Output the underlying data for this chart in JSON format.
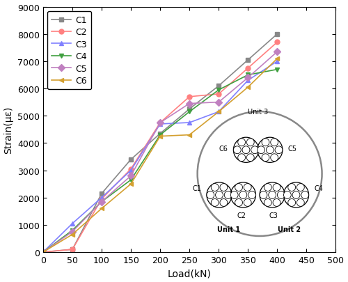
{
  "load": [
    0,
    50,
    100,
    150,
    200,
    250,
    300,
    350,
    400
  ],
  "C1": [
    0,
    100,
    2150,
    3400,
    4350,
    5250,
    6100,
    7050,
    8000
  ],
  "C2": [
    0,
    100,
    1950,
    3050,
    4750,
    5700,
    5800,
    6750,
    7700
  ],
  "C3": [
    0,
    1050,
    2000,
    3000,
    4700,
    4750,
    5150,
    6300,
    7000
  ],
  "C4": [
    0,
    800,
    1850,
    2650,
    4300,
    5150,
    5950,
    6500,
    6700
  ],
  "C5": [
    0,
    750,
    1850,
    2800,
    4750,
    5450,
    5500,
    6400,
    7350
  ],
  "C6": [
    0,
    650,
    1600,
    2500,
    4250,
    4300,
    5150,
    6050,
    7100
  ],
  "colors": {
    "C1": "#888888",
    "C2": "#FF8080",
    "C3": "#8080FF",
    "C4": "#40A040",
    "C5": "#C080C0",
    "C6": "#D4A030"
  },
  "markers": {
    "C1": "s",
    "C2": "o",
    "C3": "^",
    "C4": "v",
    "C5": "D",
    "C6": "<"
  },
  "xlabel": "Load(kN)",
  "ylabel": "Strain(με)",
  "xlim": [
    0,
    500
  ],
  "ylim": [
    0,
    9000
  ],
  "xticks": [
    0,
    50,
    100,
    150,
    200,
    250,
    300,
    350,
    400,
    450,
    500
  ],
  "yticks": [
    0,
    1000,
    2000,
    3000,
    4000,
    5000,
    6000,
    7000,
    8000,
    9000
  ]
}
